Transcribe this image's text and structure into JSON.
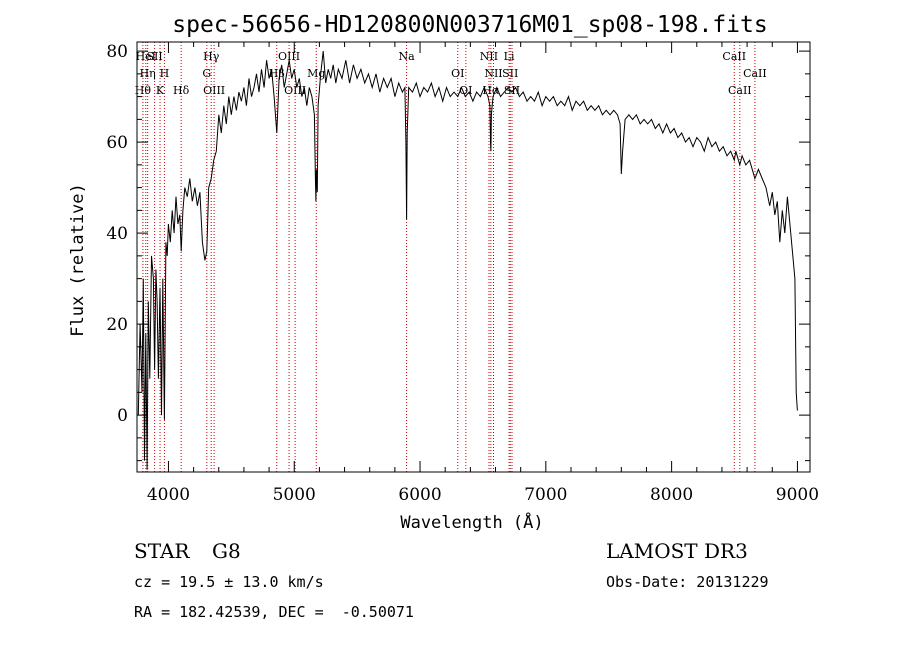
{
  "chart_data": {
    "type": "line",
    "title": "spec-56656-HD120800N003716M01_sp08-198.fits",
    "xlabel": "Wavelength (Å)",
    "ylabel": "Flux (relative)",
    "xlim": [
      3750,
      9100
    ],
    "ylim": [
      -12.5,
      82
    ],
    "xticks": [
      4000,
      5000,
      6000,
      7000,
      8000,
      9000
    ],
    "yticks": [
      0,
      20,
      40,
      60,
      80
    ],
    "line_color": "#000000",
    "marker_color": "#cc0000",
    "spectrum": [
      [
        3760,
        0
      ],
      [
        3775,
        20
      ],
      [
        3790,
        5
      ],
      [
        3800,
        30
      ],
      [
        3810,
        -10
      ],
      [
        3820,
        18
      ],
      [
        3830,
        -12
      ],
      [
        3840,
        25
      ],
      [
        3852,
        8
      ],
      [
        3865,
        35
      ],
      [
        3880,
        30
      ],
      [
        3890,
        10
      ],
      [
        3900,
        32
      ],
      [
        3910,
        25
      ],
      [
        3920,
        8
      ],
      [
        3933,
        28
      ],
      [
        3945,
        0
      ],
      [
        3955,
        30
      ],
      [
        3968,
        -1
      ],
      [
        3980,
        38
      ],
      [
        3990,
        35
      ],
      [
        4000,
        42
      ],
      [
        4015,
        38
      ],
      [
        4030,
        45
      ],
      [
        4045,
        40
      ],
      [
        4060,
        48
      ],
      [
        4075,
        42
      ],
      [
        4090,
        44
      ],
      [
        4101,
        36
      ],
      [
        4115,
        45
      ],
      [
        4130,
        50
      ],
      [
        4150,
        48
      ],
      [
        4170,
        52
      ],
      [
        4190,
        47
      ],
      [
        4210,
        50
      ],
      [
        4230,
        46
      ],
      [
        4250,
        49
      ],
      [
        4270,
        38
      ],
      [
        4290,
        34
      ],
      [
        4305,
        36
      ],
      [
        4320,
        50
      ],
      [
        4340,
        52
      ],
      [
        4360,
        56
      ],
      [
        4380,
        58
      ],
      [
        4400,
        66
      ],
      [
        4420,
        62
      ],
      [
        4440,
        68
      ],
      [
        4460,
        64
      ],
      [
        4480,
        70
      ],
      [
        4500,
        66
      ],
      [
        4520,
        70
      ],
      [
        4540,
        67
      ],
      [
        4560,
        71
      ],
      [
        4580,
        69
      ],
      [
        4600,
        72
      ],
      [
        4620,
        68
      ],
      [
        4640,
        74
      ],
      [
        4660,
        70
      ],
      [
        4680,
        72
      ],
      [
        4700,
        75
      ],
      [
        4720,
        71
      ],
      [
        4740,
        76
      ],
      [
        4760,
        72
      ],
      [
        4780,
        78
      ],
      [
        4800,
        74
      ],
      [
        4820,
        76
      ],
      [
        4840,
        70
      ],
      [
        4861,
        62
      ],
      [
        4880,
        74
      ],
      [
        4900,
        77
      ],
      [
        4920,
        72
      ],
      [
        4940,
        75
      ],
      [
        4960,
        78
      ],
      [
        4980,
        74
      ],
      [
        5000,
        76
      ],
      [
        5020,
        72
      ],
      [
        5040,
        74
      ],
      [
        5060,
        70
      ],
      [
        5080,
        72
      ],
      [
        5100,
        68
      ],
      [
        5120,
        72
      ],
      [
        5140,
        70
      ],
      [
        5160,
        66
      ],
      [
        5168,
        52
      ],
      [
        5172,
        47
      ],
      [
        5176,
        54
      ],
      [
        5183,
        49
      ],
      [
        5190,
        68
      ],
      [
        5210,
        75
      ],
      [
        5230,
        80
      ],
      [
        5250,
        73
      ],
      [
        5270,
        76
      ],
      [
        5290,
        74
      ],
      [
        5310,
        77
      ],
      [
        5330,
        73
      ],
      [
        5350,
        76
      ],
      [
        5380,
        74
      ],
      [
        5410,
        78
      ],
      [
        5440,
        73
      ],
      [
        5470,
        77
      ],
      [
        5500,
        74
      ],
      [
        5530,
        76
      ],
      [
        5560,
        73
      ],
      [
        5590,
        75
      ],
      [
        5620,
        72
      ],
      [
        5650,
        75
      ],
      [
        5680,
        71
      ],
      [
        5710,
        74
      ],
      [
        5740,
        72
      ],
      [
        5770,
        74
      ],
      [
        5800,
        70
      ],
      [
        5830,
        73
      ],
      [
        5860,
        71
      ],
      [
        5880,
        72
      ],
      [
        5888,
        60
      ],
      [
        5893,
        43
      ],
      [
        5898,
        62
      ],
      [
        5910,
        72
      ],
      [
        5940,
        71
      ],
      [
        5970,
        73
      ],
      [
        6000,
        70
      ],
      [
        6030,
        72
      ],
      [
        6060,
        71
      ],
      [
        6090,
        73
      ],
      [
        6120,
        70
      ],
      [
        6150,
        72
      ],
      [
        6180,
        69
      ],
      [
        6210,
        72
      ],
      [
        6240,
        70
      ],
      [
        6270,
        71
      ],
      [
        6300,
        70
      ],
      [
        6330,
        72
      ],
      [
        6360,
        70
      ],
      [
        6390,
        71
      ],
      [
        6420,
        69
      ],
      [
        6450,
        71
      ],
      [
        6480,
        70
      ],
      [
        6510,
        72
      ],
      [
        6540,
        70
      ],
      [
        6555,
        68
      ],
      [
        6560,
        60
      ],
      [
        6563,
        58
      ],
      [
        6567,
        66
      ],
      [
        6580,
        70
      ],
      [
        6610,
        72
      ],
      [
        6640,
        70
      ],
      [
        6670,
        71
      ],
      [
        6700,
        72
      ],
      [
        6730,
        71
      ],
      [
        6760,
        72
      ],
      [
        6790,
        70
      ],
      [
        6820,
        71
      ],
      [
        6850,
        69
      ],
      [
        6880,
        70
      ],
      [
        6910,
        69
      ],
      [
        6940,
        71
      ],
      [
        6970,
        68
      ],
      [
        7000,
        70
      ],
      [
        7030,
        69
      ],
      [
        7060,
        70
      ],
      [
        7090,
        68
      ],
      [
        7120,
        69
      ],
      [
        7150,
        68
      ],
      [
        7180,
        70
      ],
      [
        7210,
        67
      ],
      [
        7240,
        69
      ],
      [
        7270,
        68
      ],
      [
        7300,
        69
      ],
      [
        7330,
        67
      ],
      [
        7360,
        68
      ],
      [
        7390,
        67
      ],
      [
        7420,
        68
      ],
      [
        7450,
        66
      ],
      [
        7480,
        67
      ],
      [
        7510,
        66
      ],
      [
        7540,
        67
      ],
      [
        7570,
        66
      ],
      [
        7590,
        64
      ],
      [
        7600,
        53
      ],
      [
        7610,
        58
      ],
      [
        7630,
        65
      ],
      [
        7660,
        66
      ],
      [
        7690,
        65
      ],
      [
        7720,
        66
      ],
      [
        7750,
        64
      ],
      [
        7780,
        65
      ],
      [
        7810,
        64
      ],
      [
        7840,
        65
      ],
      [
        7870,
        63
      ],
      [
        7900,
        64
      ],
      [
        7930,
        62
      ],
      [
        7960,
        64
      ],
      [
        7990,
        62
      ],
      [
        8020,
        63
      ],
      [
        8050,
        61
      ],
      [
        8080,
        62
      ],
      [
        8110,
        60
      ],
      [
        8140,
        61
      ],
      [
        8170,
        59
      ],
      [
        8200,
        61
      ],
      [
        8230,
        60
      ],
      [
        8260,
        58
      ],
      [
        8290,
        61
      ],
      [
        8320,
        59
      ],
      [
        8350,
        60
      ],
      [
        8380,
        58
      ],
      [
        8410,
        59
      ],
      [
        8440,
        57
      ],
      [
        8470,
        58
      ],
      [
        8498,
        56
      ],
      [
        8510,
        58
      ],
      [
        8542,
        55
      ],
      [
        8560,
        57
      ],
      [
        8590,
        55
      ],
      [
        8620,
        56
      ],
      [
        8662,
        52
      ],
      [
        8690,
        54
      ],
      [
        8720,
        52
      ],
      [
        8750,
        50
      ],
      [
        8780,
        46
      ],
      [
        8800,
        49
      ],
      [
        8820,
        44
      ],
      [
        8840,
        47
      ],
      [
        8860,
        38
      ],
      [
        8880,
        45
      ],
      [
        8900,
        40
      ],
      [
        8920,
        48
      ],
      [
        8940,
        42
      ],
      [
        8960,
        36
      ],
      [
        8980,
        30
      ],
      [
        8990,
        5
      ],
      [
        9000,
        1
      ]
    ],
    "lines": [
      {
        "label": "HeI",
        "wl": 3820,
        "row": 0
      },
      {
        "label": "SII",
        "wl": 3890,
        "row": 0
      },
      {
        "label": "Hη",
        "wl": 3835,
        "row": 1
      },
      {
        "label": "H",
        "wl": 3968,
        "row": 1
      },
      {
        "label": "Hθ",
        "wl": 3797,
        "row": 2
      },
      {
        "label": "K",
        "wl": 3933,
        "row": 2
      },
      {
        "label": "Hδ",
        "wl": 4101,
        "row": 2
      },
      {
        "label": "Hγ",
        "wl": 4340,
        "row": 0
      },
      {
        "label": "G",
        "wl": 4305,
        "row": 1
      },
      {
        "label": "OIII",
        "wl": 4363,
        "row": 2
      },
      {
        "label": "OIII",
        "wl": 4959,
        "row": 0
      },
      {
        "label": "Hβ",
        "wl": 4861,
        "row": 1
      },
      {
        "label": "OIII",
        "wl": 5007,
        "row": 2
      },
      {
        "label": "Mg",
        "wl": 5175,
        "row": 1
      },
      {
        "label": "Na",
        "wl": 5893,
        "row": 0
      },
      {
        "label": "OI",
        "wl": 6300,
        "row": 1
      },
      {
        "label": "OI",
        "wl": 6364,
        "row": 2
      },
      {
        "label": "NII",
        "wl": 6548,
        "row": 0
      },
      {
        "label": "Li",
        "wl": 6708,
        "row": 0
      },
      {
        "label": "NII",
        "wl": 6584,
        "row": 1
      },
      {
        "label": "SII",
        "wl": 6717,
        "row": 1
      },
      {
        "label": "Hα",
        "wl": 6563,
        "row": 2
      },
      {
        "label": "SII",
        "wl": 6731,
        "row": 2
      },
      {
        "label": "CaII",
        "wl": 8498,
        "row": 0
      },
      {
        "label": "CaII",
        "wl": 8662,
        "row": 1
      },
      {
        "label": "CaII",
        "wl": 8542,
        "row": 2
      }
    ]
  },
  "info": {
    "object_class": "STAR",
    "subclass": "G8",
    "survey": "LAMOST DR3",
    "redshift": "cz = 19.5 ± 13.0 km/s",
    "obs_date": "Obs-Date: 20131229",
    "coords": "RA = 182.42539, DEC =  -0.50071"
  }
}
